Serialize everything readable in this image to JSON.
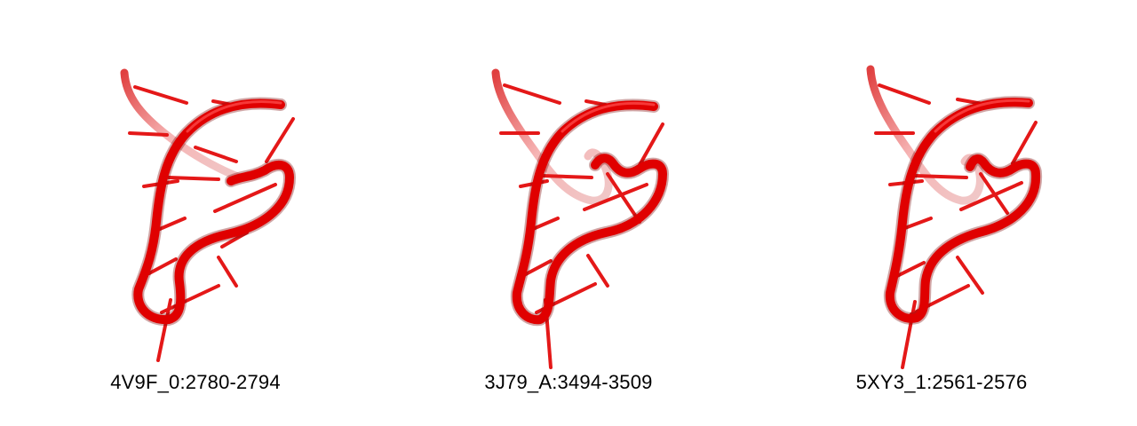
{
  "structures": [
    {
      "label": "4V9F_0:2780-2794",
      "variant": "a"
    },
    {
      "label": "3J79_A:3494-3509",
      "variant": "b"
    },
    {
      "label": "5XY3_1:2561-2576",
      "variant": "b"
    }
  ],
  "colors": {
    "backbone": "#e00000",
    "backbone_dark": "#8a0000",
    "backbone_faded": "#f2a0a0",
    "base": "#e81010",
    "background": "#ffffff"
  }
}
